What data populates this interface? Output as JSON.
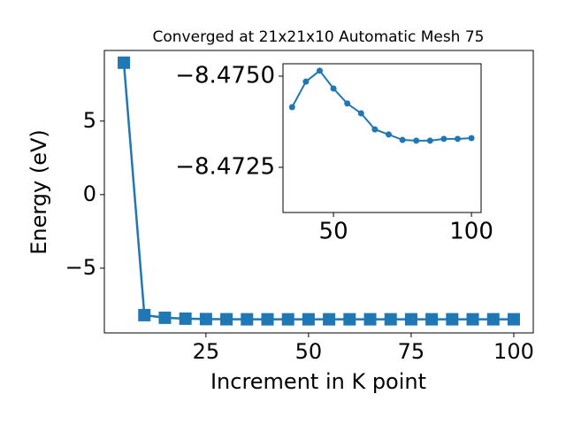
{
  "chart_data": [
    {
      "type": "line",
      "title": "Converged at 21x21x10 Automatic Mesh 75",
      "x_label": "Increment in K point",
      "y_label": "Energy (eV)",
      "x": [
        5,
        10,
        15,
        20,
        25,
        30,
        35,
        40,
        45,
        50,
        55,
        60,
        65,
        70,
        75,
        80,
        85,
        90,
        95,
        100
      ],
      "series": [
        {
          "color": "#1f77b4",
          "marker": "square",
          "values": [
            8.97,
            -8.19,
            -8.37,
            -8.43,
            -8.46,
            -8.47,
            -8.47415,
            -8.47485,
            -8.47515,
            -8.47466,
            -8.47425,
            -8.47398,
            -8.47354,
            -8.4734,
            -8.47325,
            -8.47323,
            -8.47323,
            -8.47328,
            -8.47328,
            -8.4733
          ]
        }
      ],
      "xlim": [
        0.25,
        104.75
      ],
      "xticks": [
        25,
        50,
        75,
        100
      ],
      "ylim": [
        -9.4,
        9.8
      ],
      "yticks": [
        5,
        0,
        {
          "value": -5,
          "label": "−5"
        }
      ],
      "grid": false
    },
    {
      "type": "line",
      "x": [
        35,
        40,
        45,
        50,
        55,
        60,
        65,
        70,
        75,
        80,
        85,
        90,
        95,
        100
      ],
      "series": [
        {
          "color": "#1f77b4",
          "marker": "circle",
          "values": [
            -8.47415,
            -8.47485,
            -8.47515,
            -8.47466,
            -8.47425,
            -8.47398,
            -8.47354,
            -8.4734,
            -8.47325,
            -8.47323,
            -8.47323,
            -8.47328,
            -8.47328,
            -8.4733
          ]
        }
      ],
      "xlim": [
        31.7,
        103.5
      ],
      "xticks": [
        50,
        100
      ],
      "ylim": [
        -8.47126,
        -8.47534
      ],
      "yticks": [
        {
          "value": -8.475,
          "label": "−8.4750"
        },
        {
          "value": -8.4725,
          "label": "−8.4725"
        }
      ],
      "grid": false
    }
  ]
}
